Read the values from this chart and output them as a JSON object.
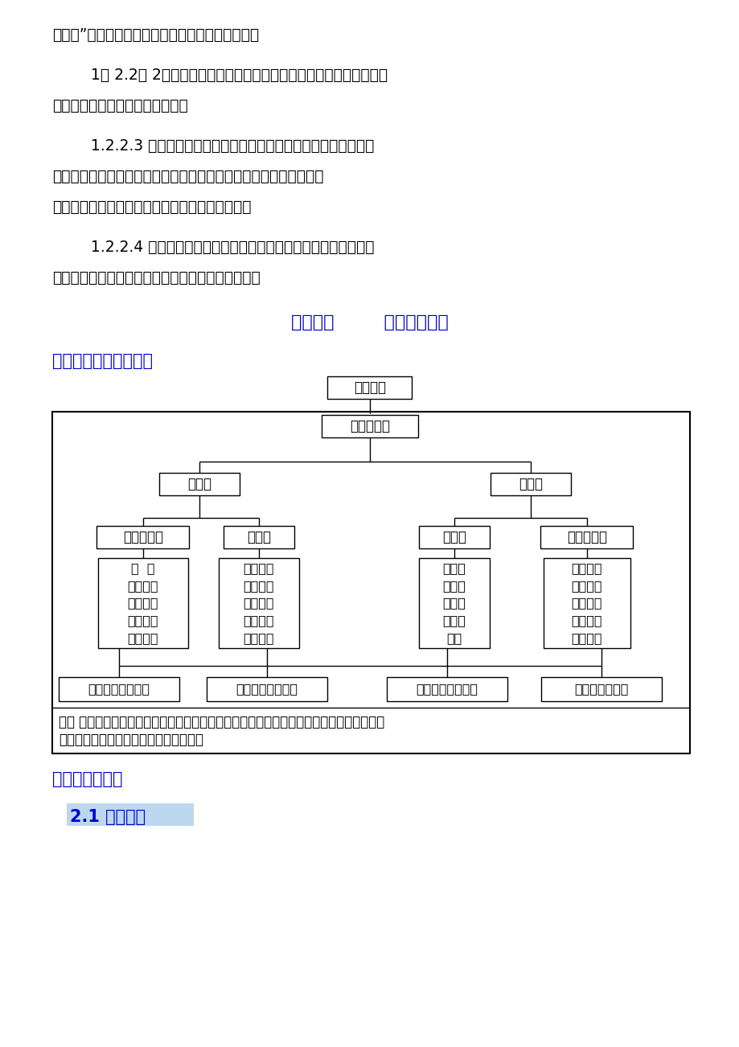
{
  "page_bg": "#ffffff",
  "text_color": "#000000",
  "blue_color": "#0000CD",
  "para1": "工方案”，用以指导整个工艺流程，保证安全施工；",
  "para2": "        1。 2.2。 2成立现场拆除项目部，根据现场情况及工程安排，合理组",
  "para3": "织各机械及人员等进行施工作业；",
  "para4": "        1.2.2.3 开工前，参加工程的施工人员认真接受甲方对拆除区域内",
  "para5": "的安全及技术交底，组织工长、安全员及施工人员熟悉和掌握施工范",
  "para6": "围及结构特点，要有严格的安全和施工工艺交底；",
  "para7": "        1.2.2.4 拆除时积极采取降尘措施，且保证施工现场低噪音及低粉",
  "para8": "尘施工，确保现场正常施工及人员正常的作息要求。",
  "section_title": "第二部分        施工组织实施",
  "section1": "一、项目部组织机构：",
  "section2": "二、施工布置：",
  "section21": "2.1 技术准备",
  "node_jingli": "项目经理",
  "node_fuze": "技术负责人",
  "node_jishu": "技术室",
  "node_bangong": "办公室",
  "node_gongcheng": "工程技术部",
  "node_zhian": "质安部",
  "node_houqin": "后勤部",
  "node_cailiao": "材料设备部",
  "node_eng_detail": "测  量\n合同预算\n施工工艺\n技术资料\n计划统计",
  "node_qa_detail": "作业面质\n检材料、\n成品检验\n试验主管\n安全监督",
  "node_log_detail": "生产生\n活服务\n劳动工\n资文事\n财务",
  "node_mat_detail": "材料、成\n品采购机\n械设备采\n购及维修\n水电作业",
  "node_b1": "外围协调作业班组",
  "node_b2": "机械拆除作业班组",
  "node_b3": "人工拆除作业班组",
  "node_b4": "渣土清运作业组",
  "note_line1": "说明 项目经理部执行计划、组织协调、控制、监督、指挥职能，对施工项目的质量、工期、",
  "note_line2": "合同、安全、成本进行全面管理与控制。"
}
